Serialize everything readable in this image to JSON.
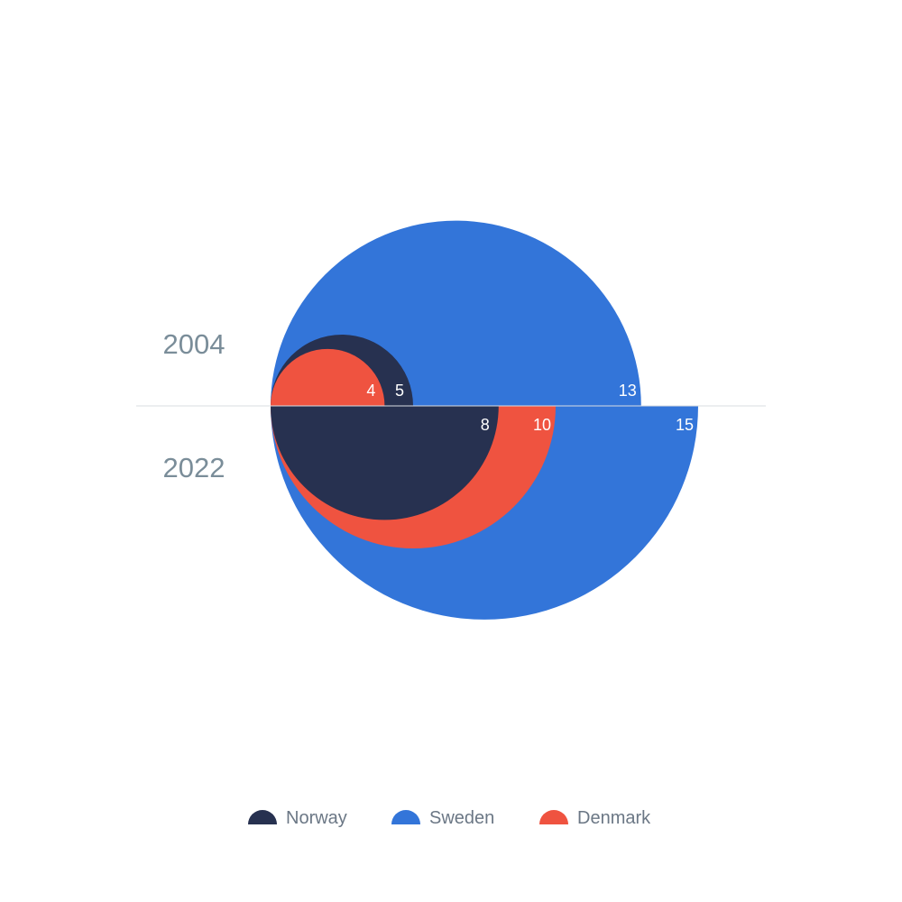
{
  "chart_data": {
    "type": "nested-semicircle",
    "categories": [
      "2004",
      "2022"
    ],
    "series": [
      {
        "name": "Norway",
        "color": "#273150",
        "values": [
          5,
          8
        ]
      },
      {
        "name": "Sweden",
        "color": "#3375d9",
        "values": [
          13,
          15
        ]
      },
      {
        "name": "Denmark",
        "color": "#ef5340",
        "values": [
          4,
          10
        ]
      }
    ],
    "title": "",
    "legend_position": "bottom"
  }
}
